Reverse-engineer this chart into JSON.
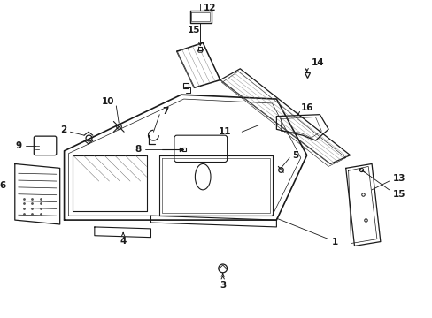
{
  "bg_color": "#ffffff",
  "line_color": "#1a1a1a",
  "fig_width": 4.89,
  "fig_height": 3.6,
  "dpi": 100,
  "font_size": 7.5,
  "lw_main": 1.0,
  "lw_thin": 0.6,
  "lw_med": 0.8
}
